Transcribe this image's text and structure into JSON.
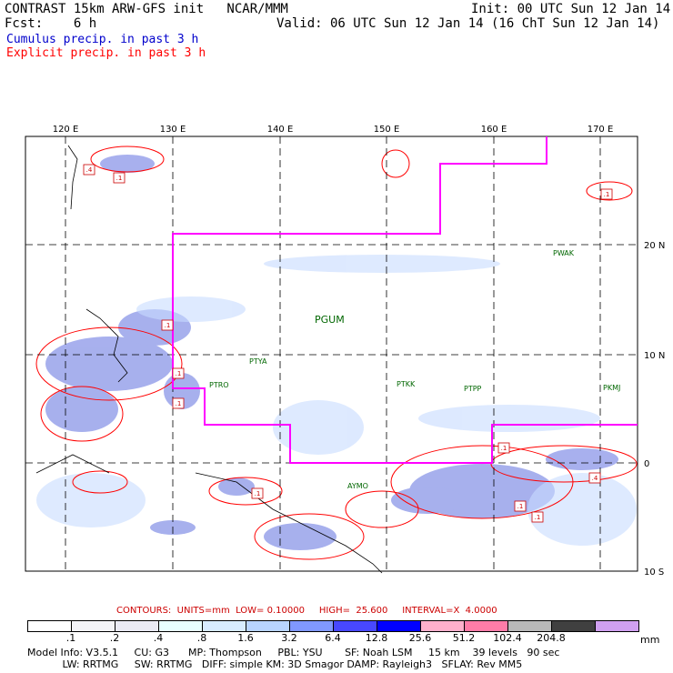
{
  "header": {
    "title_line": "CONTRAST 15km ARW-GFS init   NCAR/MMM",
    "init_line": "Init: 00 UTC Sun 12 Jan 14",
    "fcst_line": "Fcst:    6 h",
    "valid_line": "Valid: 06 UTC Sun 12 Jan 14 (16 ChT Sun 12 Jan 14)",
    "cumulus_label": "Cumulus precip. in past 3 h",
    "explicit_label": "Explicit precip. in past 3 h"
  },
  "map": {
    "lon_labels": [
      "120 E",
      "130 E",
      "140 E",
      "150 E",
      "160 E",
      "170 E"
    ],
    "lat_labels": [
      "20 N",
      "10 N",
      "0",
      "10 S"
    ],
    "stations": [
      {
        "id": "PGUM",
        "large": true
      },
      {
        "id": "PTYA"
      },
      {
        "id": "PTRO"
      },
      {
        "id": "PTKK"
      },
      {
        "id": "PTPP"
      },
      {
        "id": "PKMJ"
      },
      {
        "id": "PWAK"
      },
      {
        "id": "AYMO"
      }
    ],
    "contour_box_labels": [
      ".4",
      ".1",
      ".1",
      ".1",
      ".1",
      ".1",
      ".1",
      ".4",
      ".1",
      ".1",
      ".1"
    ]
  },
  "contour_info": "CONTOURS:  UNITS=mm  LOW= 0.10000     HIGH=  25.600     INTERVAL=X  4.0000",
  "scale": {
    "labels": [
      ".1",
      ".2",
      ".4",
      ".8",
      "1.6",
      "3.2",
      "6.4",
      "12.8",
      "25.6",
      "51.2",
      "102.4",
      "204.8"
    ],
    "unit": "mm",
    "colors": [
      "#ffffff",
      "#f4f4f8",
      "#eaeaf4",
      "#e8ffff",
      "#d8ecff",
      "#b8d4ff",
      "#8098ff",
      "#4848ff",
      "#0000ff",
      "#ffb0cc",
      "#ff7ca8",
      "#b8b8b8",
      "#404040",
      "#d0a0f0"
    ]
  },
  "footer": {
    "line1": "Model Info: V3.5.1     CU: G3      MP: Thompson     PBL: YSU       SF: Noah LSM     15 km    39 levels   90 sec",
    "line2": "           LW: RRTMG     SW: RRTMG   DIFF: simple KM: 3D Smagor DAMP: Rayleigh3   SFLAY: Rev MM5"
  }
}
